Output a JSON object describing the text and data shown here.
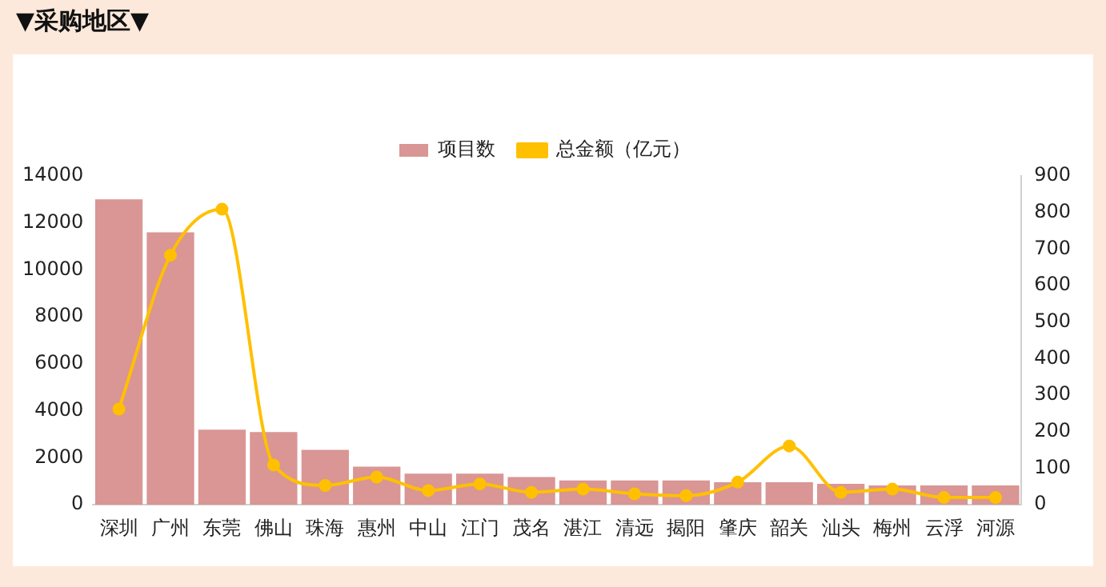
{
  "chart_data": {
    "type": "bar",
    "title": "▼采购地区▼",
    "categories": [
      "深圳",
      "广州",
      "东莞",
      "佛山",
      "珠海",
      "惠州",
      "中山",
      "江门",
      "茂名",
      "湛江",
      "清远",
      "揭阳",
      "肇庆",
      "韶关",
      "汕头",
      "梅州",
      "云浮",
      "河源"
    ],
    "series": [
      {
        "name": "项目数",
        "color": "#d99694",
        "values": [
          13000,
          11600,
          3200,
          3100,
          2340,
          1620,
          1330,
          1330,
          1180,
          1040,
          1040,
          1040,
          960,
          960,
          890,
          820,
          820,
          820
        ]
      },
      {
        "name": "总金额（亿元）",
        "type": "line",
        "axis": "y2",
        "color": "#ffc000",
        "marker": "circle",
        "values": [
          262,
          683,
          809,
          109,
          53,
          76,
          39,
          57,
          34,
          43,
          30,
          25,
          62,
          161,
          34,
          43,
          20,
          20
        ]
      }
    ],
    "ylim": [
      0,
      14000
    ],
    "yticks": [
      0,
      2000,
      4000,
      6000,
      8000,
      10000,
      12000,
      14000
    ],
    "y2lim": [
      0,
      900
    ],
    "y2ticks": [
      0,
      100,
      200,
      300,
      400,
      500,
      600,
      700,
      800,
      900
    ],
    "grid": false,
    "legend": "top"
  }
}
